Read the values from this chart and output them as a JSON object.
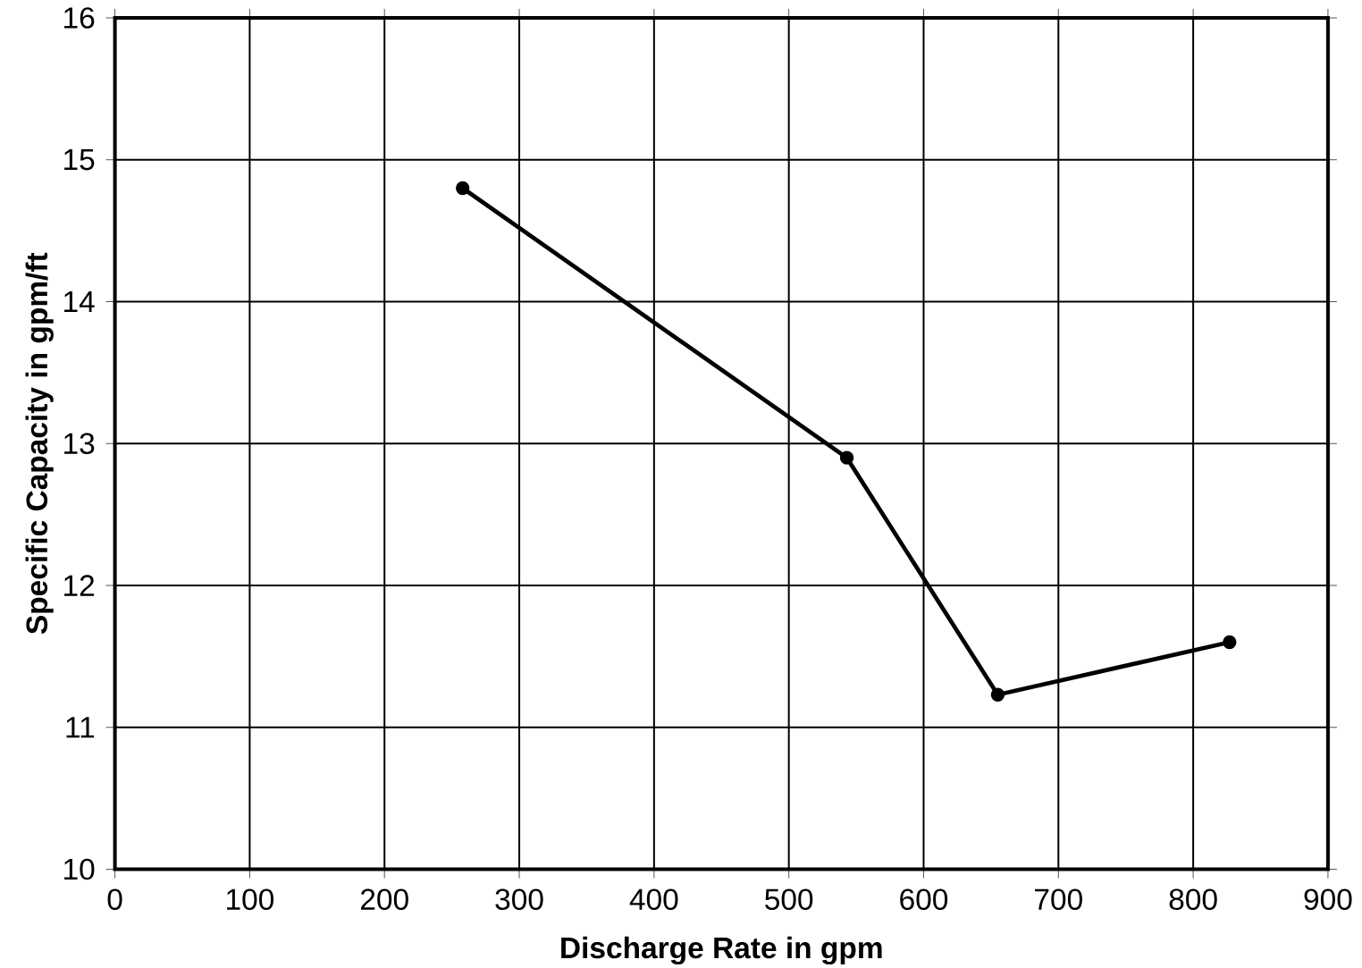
{
  "chart_data": {
    "type": "line",
    "xlabel": "Discharge Rate in gpm",
    "ylabel": "Specific Capacity in gpm/ft",
    "x": [
      258,
      543,
      655,
      827
    ],
    "series": [
      {
        "color": "#000000",
        "values": [
          14.8,
          12.9,
          11.23,
          11.6
        ]
      }
    ],
    "xlim": [
      0,
      900
    ],
    "xticks": [
      0,
      100,
      200,
      300,
      400,
      500,
      600,
      700,
      800,
      900
    ],
    "ylim": [
      10,
      16
    ],
    "yticks": [
      10,
      11,
      12,
      13,
      14,
      15,
      16
    ],
    "grid": true,
    "marker": "circle",
    "line_style": "solid"
  }
}
